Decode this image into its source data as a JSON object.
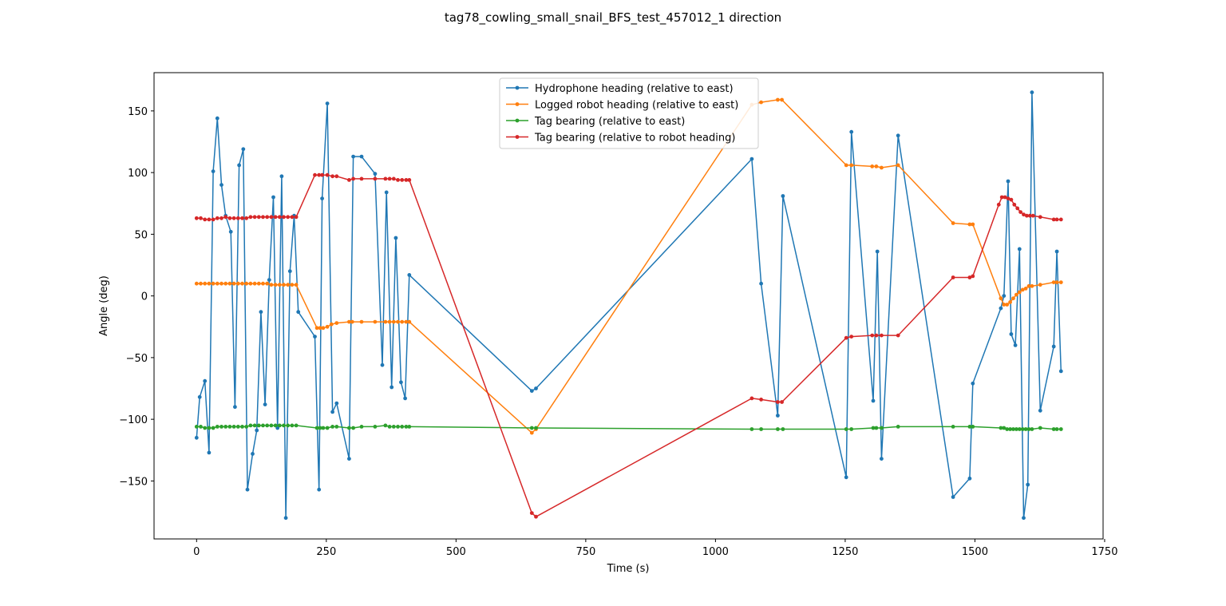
{
  "chart_data": {
    "type": "line",
    "title": "tag78_cowling_small_snail_BFS_test_457012_1 direction",
    "xlabel": "Time (s)",
    "ylabel": "Angle (deg)",
    "xlim": [
      -82,
      1747
    ],
    "ylim": [
      -197,
      181
    ],
    "xticks": [
      0,
      250,
      500,
      750,
      1000,
      1250,
      1500,
      1750
    ],
    "xtick_labels": [
      "0",
      "250",
      "500",
      "750",
      "1000",
      "1250",
      "1500",
      "1750"
    ],
    "yticks": [
      -150,
      -100,
      -50,
      0,
      50,
      100,
      150
    ],
    "ytick_labels": [
      "−150",
      "−100",
      "−50",
      "0",
      "50",
      "100",
      "150"
    ],
    "grid": false,
    "legend_position": "upper center",
    "series": [
      {
        "name": "Hydrophone heading (relative to east)",
        "color": "#1f77b4",
        "x": [
          0,
          6,
          16,
          24,
          32,
          40,
          48,
          56,
          66,
          74,
          82,
          90,
          98,
          108,
          116,
          124,
          132,
          140,
          148,
          156,
          164,
          172,
          180,
          188,
          196,
          228,
          236,
          242,
          252,
          262,
          270,
          294,
          302,
          318,
          344,
          358,
          366,
          376,
          384,
          394,
          402,
          410,
          646,
          654,
          1070,
          1088,
          1120,
          1130,
          1252,
          1262,
          1304,
          1312,
          1320,
          1352,
          1458,
          1490,
          1496,
          1550,
          1556,
          1564,
          1570,
          1578,
          1586,
          1594,
          1602,
          1610,
          1626,
          1652,
          1658,
          1666
        ],
        "y": [
          -115,
          -82,
          -69,
          -127,
          101,
          144,
          90,
          65,
          52,
          -90,
          106,
          119,
          -157,
          -128,
          -109,
          -13,
          -88,
          13,
          80,
          -107,
          97,
          -180,
          20,
          65,
          -13,
          -33,
          -157,
          79,
          156,
          -94,
          -87,
          -132,
          113,
          113,
          99,
          -56,
          84,
          -74,
          47,
          -70,
          -83,
          17,
          -77,
          -75,
          111,
          10,
          -97,
          81,
          -147,
          133,
          -85,
          36,
          -132,
          130,
          -163,
          -148,
          -71,
          -10,
          0,
          93,
          -31,
          -40,
          38,
          -180,
          -153,
          165,
          -93,
          -41,
          36,
          -61
        ]
      },
      {
        "name": "Logged robot heading (relative to east)",
        "color": "#ff7f0e",
        "x": [
          0,
          8,
          16,
          24,
          32,
          40,
          48,
          56,
          64,
          72,
          80,
          88,
          96,
          104,
          112,
          120,
          128,
          136,
          144,
          152,
          160,
          168,
          176,
          184,
          192,
          232,
          238,
          244,
          252,
          260,
          270,
          294,
          300,
          318,
          344,
          364,
          372,
          380,
          388,
          396,
          404,
          410,
          646,
          654,
          1070,
          1088,
          1120,
          1128,
          1252,
          1262,
          1302,
          1310,
          1320,
          1352,
          1458,
          1490,
          1496,
          1550,
          1556,
          1562,
          1568,
          1574,
          1580,
          1586,
          1592,
          1598,
          1604,
          1610,
          1626,
          1652,
          1658,
          1666
        ],
        "y": [
          10,
          10,
          10,
          10,
          10,
          10,
          10,
          10,
          10,
          10,
          10,
          10,
          10,
          10,
          10,
          10,
          10,
          10,
          9,
          9,
          9,
          9,
          9,
          9,
          9,
          -26,
          -26,
          -26,
          -25,
          -23,
          -22,
          -21,
          -21,
          -21,
          -21,
          -21,
          -21,
          -21,
          -21,
          -21,
          -21,
          -21,
          -111,
          -108,
          155,
          157,
          159,
          159,
          106,
          106,
          105,
          105,
          104,
          106,
          59,
          58,
          58,
          -2,
          -7,
          -7,
          -5,
          -2,
          1,
          3,
          5,
          6,
          8,
          8,
          9,
          11,
          11,
          11
        ]
      },
      {
        "name": "Tag bearing (relative to east)",
        "color": "#2ca02c",
        "x": [
          0,
          8,
          16,
          24,
          32,
          40,
          48,
          56,
          64,
          72,
          80,
          88,
          96,
          104,
          112,
          120,
          128,
          136,
          144,
          152,
          160,
          168,
          176,
          184,
          192,
          232,
          238,
          244,
          252,
          262,
          270,
          294,
          302,
          318,
          344,
          364,
          372,
          380,
          388,
          396,
          404,
          410,
          646,
          654,
          1070,
          1088,
          1120,
          1130,
          1252,
          1262,
          1304,
          1310,
          1320,
          1352,
          1458,
          1490,
          1496,
          1550,
          1556,
          1562,
          1568,
          1574,
          1580,
          1586,
          1592,
          1598,
          1604,
          1610,
          1626,
          1652,
          1658,
          1666
        ],
        "y": [
          -106,
          -106,
          -107,
          -107,
          -107,
          -106,
          -106,
          -106,
          -106,
          -106,
          -106,
          -106,
          -106,
          -105,
          -105,
          -105,
          -105,
          -105,
          -105,
          -105,
          -105,
          -105,
          -105,
          -105,
          -105,
          -107,
          -107,
          -107,
          -107,
          -106,
          -106,
          -107,
          -107,
          -106,
          -106,
          -105,
          -106,
          -106,
          -106,
          -106,
          -106,
          -106,
          -107,
          -107,
          -108,
          -108,
          -108,
          -108,
          -108,
          -108,
          -107,
          -107,
          -107,
          -106,
          -106,
          -106,
          -106,
          -107,
          -107,
          -108,
          -108,
          -108,
          -108,
          -108,
          -108,
          -108,
          -108,
          -108,
          -107,
          -108,
          -108,
          -108
        ],
        "marker_stride": 1
      },
      {
        "name": "Tag bearing (relative to robot heading)",
        "color": "#d62728",
        "x": [
          0,
          8,
          16,
          24,
          32,
          40,
          48,
          56,
          64,
          72,
          80,
          88,
          96,
          104,
          112,
          120,
          128,
          136,
          144,
          152,
          160,
          168,
          176,
          184,
          192,
          228,
          236,
          242,
          252,
          262,
          270,
          294,
          302,
          318,
          344,
          364,
          372,
          380,
          388,
          396,
          404,
          410,
          646,
          654,
          1070,
          1088,
          1120,
          1128,
          1252,
          1262,
          1302,
          1310,
          1320,
          1352,
          1458,
          1490,
          1496,
          1546,
          1552,
          1558,
          1564,
          1570,
          1576,
          1582,
          1588,
          1594,
          1600,
          1606,
          1612,
          1626,
          1652,
          1658,
          1666
        ],
        "y": [
          63,
          63,
          62,
          62,
          62,
          63,
          63,
          64,
          63,
          63,
          63,
          63,
          63,
          64,
          64,
          64,
          64,
          64,
          64,
          64,
          64,
          64,
          64,
          64,
          64,
          98,
          98,
          98,
          98,
          97,
          97,
          94,
          95,
          95,
          95,
          95,
          95,
          95,
          94,
          94,
          94,
          94,
          -176,
          -179,
          -83,
          -84,
          -86,
          -86,
          -34,
          -33,
          -32,
          -32,
          -32,
          -32,
          15,
          15,
          16,
          74,
          80,
          80,
          79,
          78,
          74,
          71,
          68,
          66,
          65,
          65,
          65,
          64,
          62,
          62,
          62
        ]
      }
    ]
  }
}
